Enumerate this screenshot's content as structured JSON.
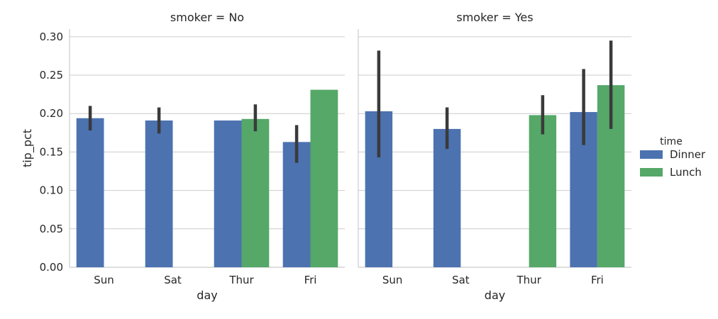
{
  "chart_data": [
    {
      "type": "bar",
      "title": "smoker = No",
      "xlabel": "day",
      "ylabel": "tip_pct",
      "categories": [
        "Sun",
        "Sat",
        "Thur",
        "Fri"
      ],
      "ylim": [
        0,
        0.31
      ],
      "yticks": [
        "0.00",
        "0.05",
        "0.10",
        "0.15",
        "0.20",
        "0.25",
        "0.30"
      ],
      "grid": "horizontal",
      "series": [
        {
          "name": "Dinner",
          "values": [
            0.194,
            0.191,
            0.191,
            0.163
          ],
          "ci_low": [
            0.178,
            0.174,
            null,
            0.136
          ],
          "ci_high": [
            0.21,
            0.208,
            null,
            0.185
          ]
        },
        {
          "name": "Lunch",
          "values": [
            null,
            null,
            0.193,
            0.231
          ],
          "ci_low": [
            null,
            null,
            0.177,
            null
          ],
          "ci_high": [
            null,
            null,
            0.212,
            null
          ]
        }
      ]
    },
    {
      "type": "bar",
      "title": "smoker = Yes",
      "xlabel": "day",
      "ylabel": "",
      "categories": [
        "Sun",
        "Sat",
        "Thur",
        "Fri"
      ],
      "ylim": [
        0,
        0.31
      ],
      "grid": "horizontal",
      "series": [
        {
          "name": "Dinner",
          "values": [
            0.203,
            0.18,
            null,
            0.202
          ],
          "ci_low": [
            0.143,
            0.154,
            null,
            0.159
          ],
          "ci_high": [
            0.282,
            0.208,
            null,
            0.258
          ]
        },
        {
          "name": "Lunch",
          "values": [
            null,
            null,
            0.198,
            0.237
          ],
          "ci_low": [
            null,
            null,
            0.173,
            0.18
          ],
          "ci_high": [
            null,
            null,
            0.224,
            0.295
          ]
        }
      ]
    }
  ],
  "legend": {
    "title": "time",
    "placement": "right",
    "items": [
      {
        "label": "Dinner",
        "color": "#4c72b0"
      },
      {
        "label": "Lunch",
        "color": "#55a868"
      }
    ]
  },
  "colors": {
    "Dinner": "#4c72b0",
    "Lunch": "#55a868",
    "errorbar": "#3a3a3a",
    "grid": "#cccccc"
  }
}
